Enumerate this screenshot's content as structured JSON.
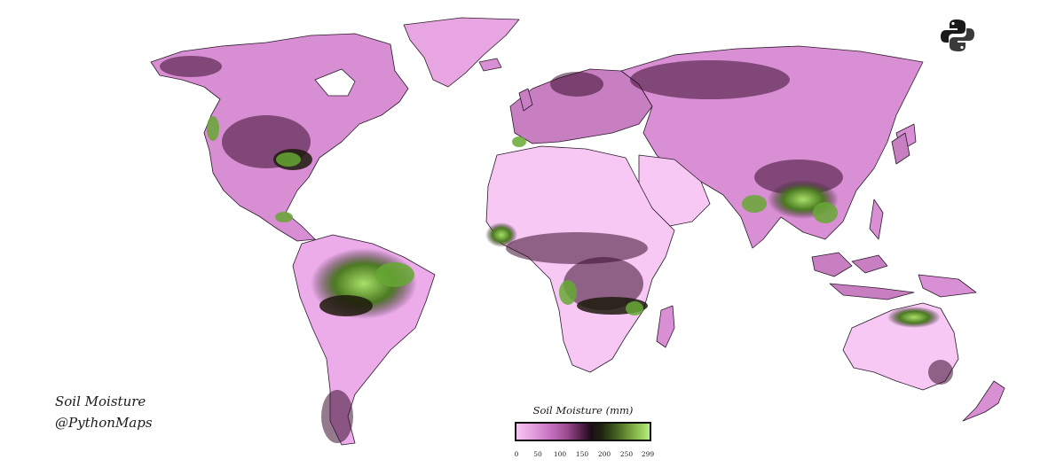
{
  "caption": {
    "title": "Soil Moisture",
    "handle": "@PythonMaps"
  },
  "legend": {
    "title": "Soil Moisture (mm)",
    "ticks": [
      "0",
      "50",
      "100",
      "150",
      "200",
      "250",
      "299"
    ],
    "colors": [
      "#f7c4f2",
      "#c873c1",
      "#5a2450",
      "#1c0d17",
      "#3f5a1e",
      "#b6ee7b"
    ]
  },
  "colors": {
    "dry": "#f6c8f3",
    "moderate": "#c77fc2",
    "wet_dark": "#2b0f24",
    "very_wet": "#9bd45c",
    "border": "#2a1a2a"
  },
  "logo_icon": "python-logo-icon"
}
